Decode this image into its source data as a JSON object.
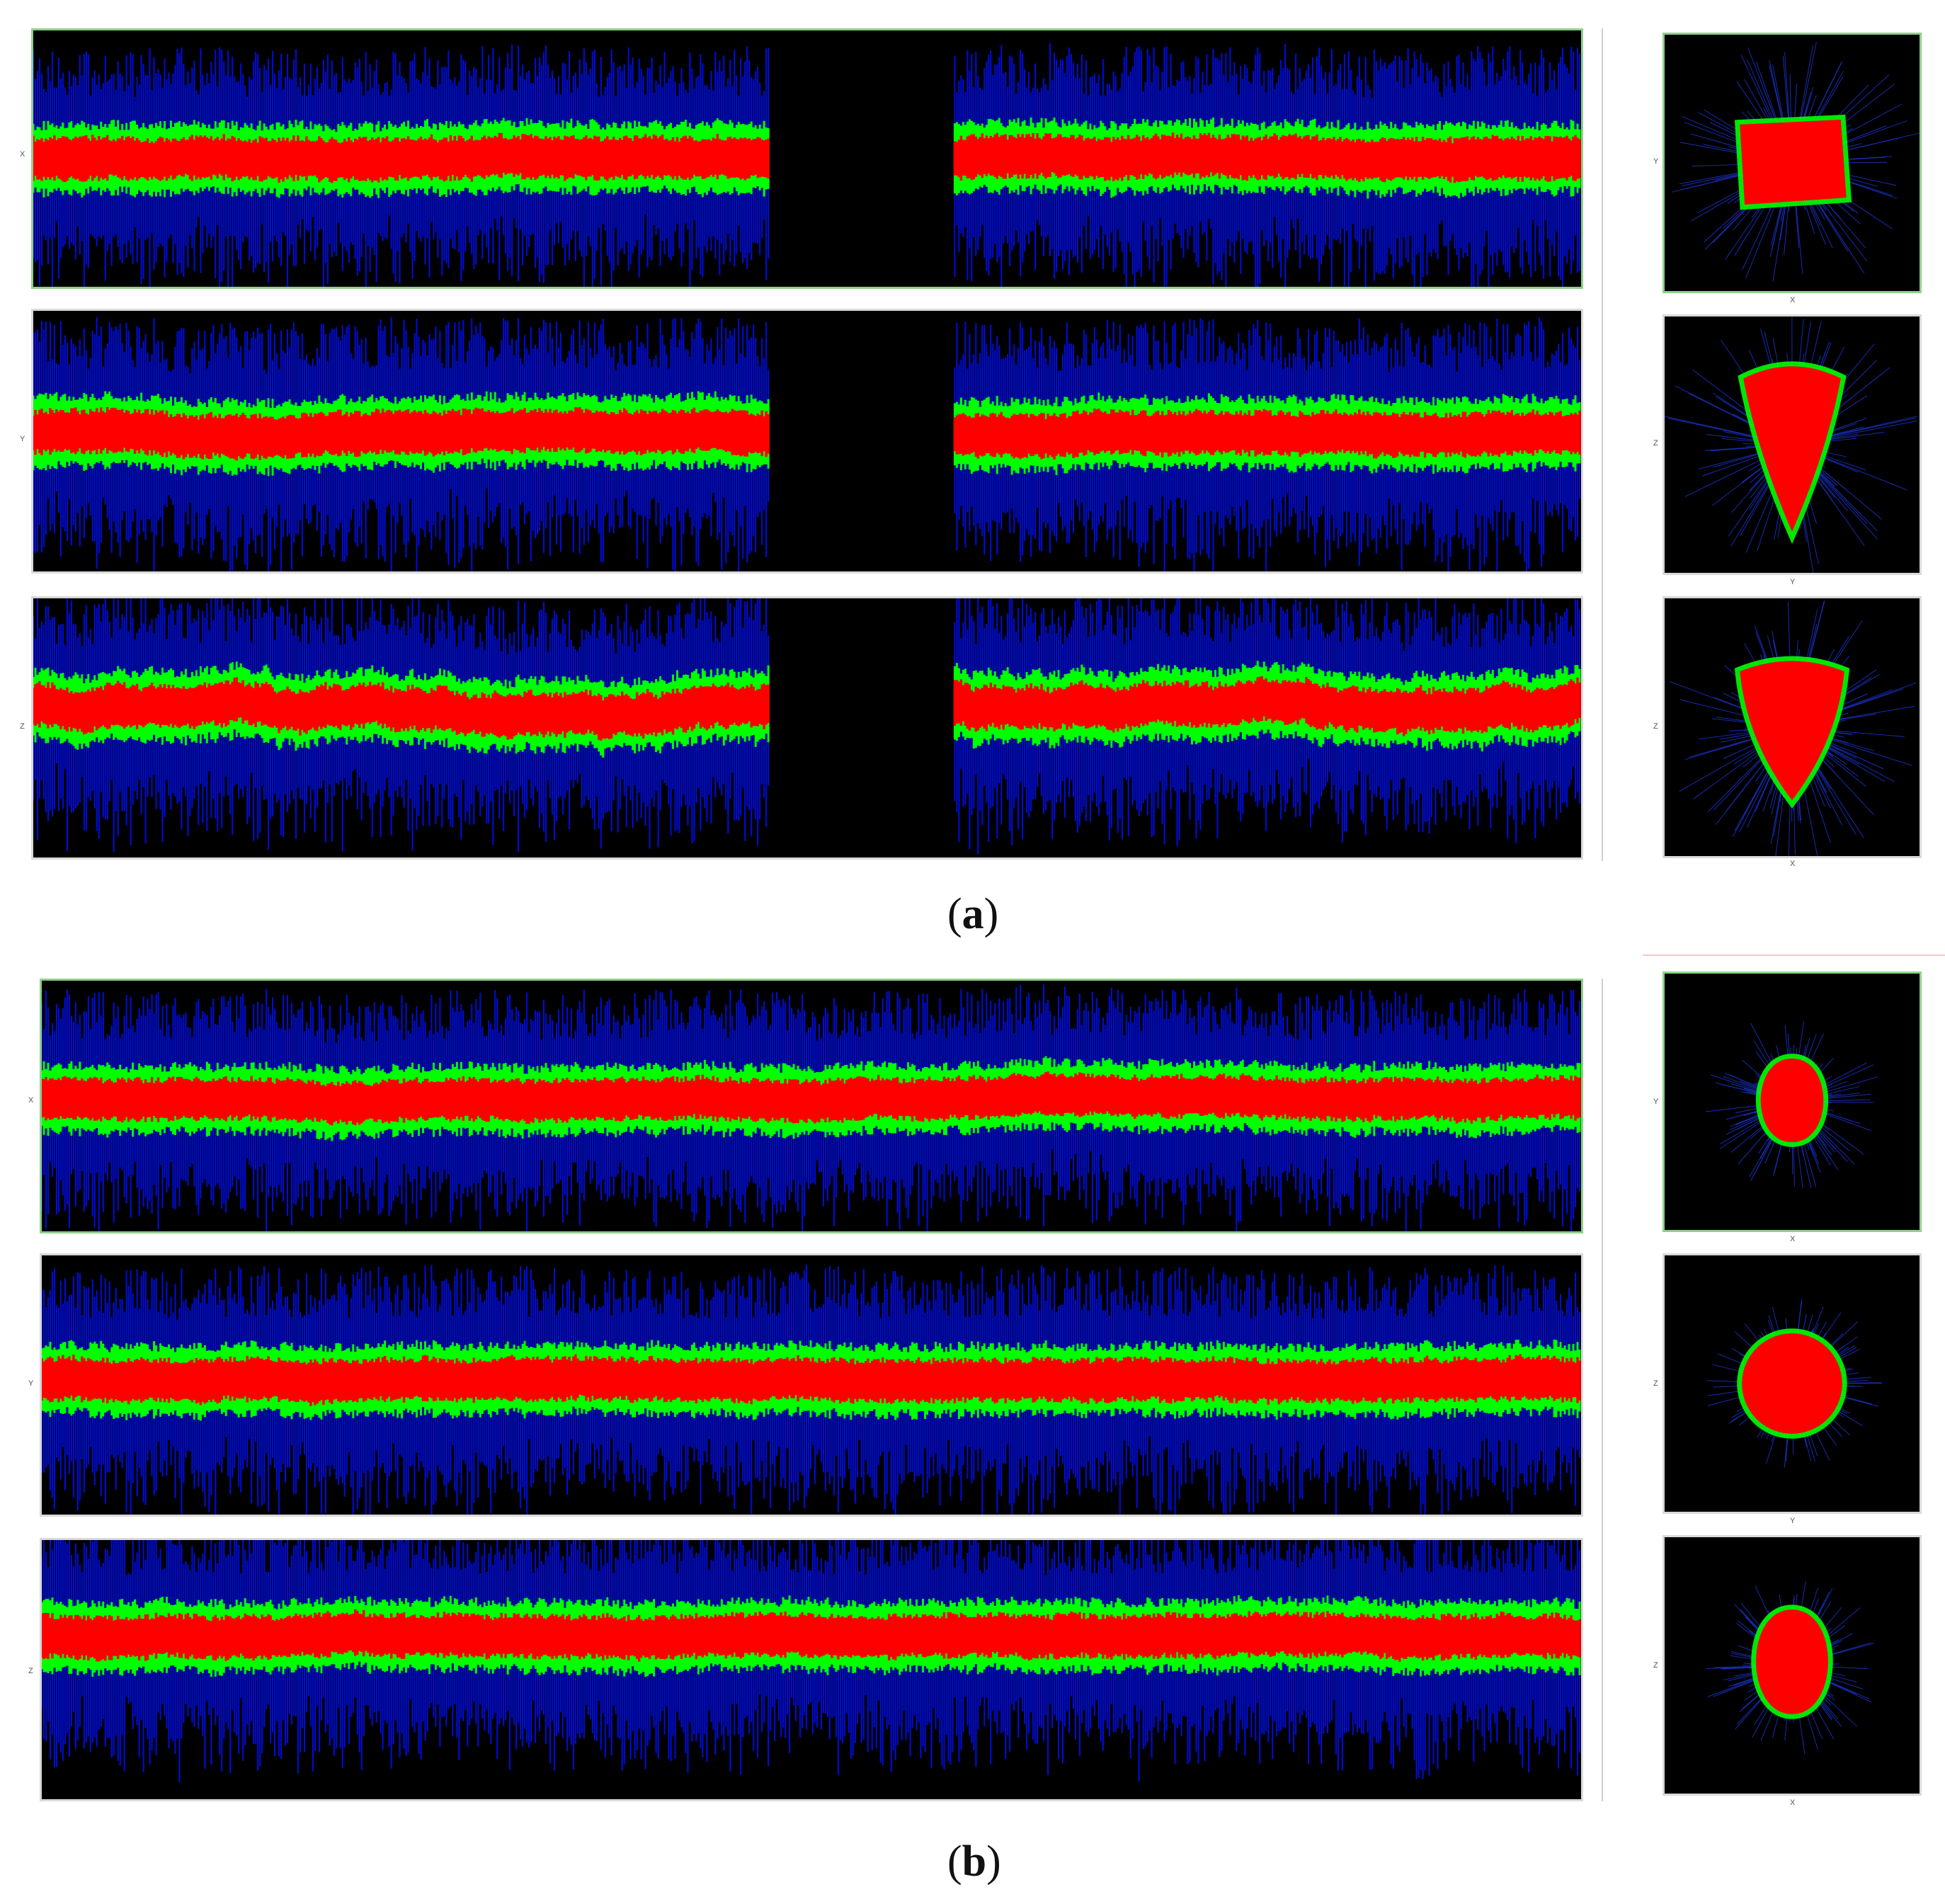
{
  "captions": {
    "a": "a",
    "b": "b"
  },
  "colors": {
    "core": "#ff0000",
    "mid": "#00ff00",
    "edge": "#0010ff",
    "background": "#000000"
  },
  "sections": [
    {
      "traces": [
        {
          "axis_label": "X",
          "has_gap": true,
          "selected": true
        },
        {
          "axis_label": "Y",
          "has_gap": true,
          "selected": false
        },
        {
          "axis_label": "Z",
          "has_gap": true,
          "selected": false
        }
      ],
      "projections": [
        {
          "v_label": "Y",
          "h_label": "X",
          "shape": "square",
          "selected": true
        },
        {
          "v_label": "Z",
          "h_label": "Y",
          "shape": "cone",
          "selected": false
        },
        {
          "v_label": "Z",
          "h_label": "X",
          "shape": "shield",
          "selected": false
        }
      ]
    },
    {
      "traces": [
        {
          "axis_label": "X",
          "has_gap": false,
          "selected": true
        },
        {
          "axis_label": "Y",
          "has_gap": false,
          "selected": false
        },
        {
          "axis_label": "Z",
          "has_gap": false,
          "selected": false
        }
      ],
      "projections": [
        {
          "v_label": "Y",
          "h_label": "X",
          "shape": "blob",
          "selected": true
        },
        {
          "v_label": "Z",
          "h_label": "Y",
          "shape": "round",
          "selected": false
        },
        {
          "v_label": "Z",
          "h_label": "X",
          "shape": "egg",
          "selected": false
        }
      ]
    }
  ]
}
